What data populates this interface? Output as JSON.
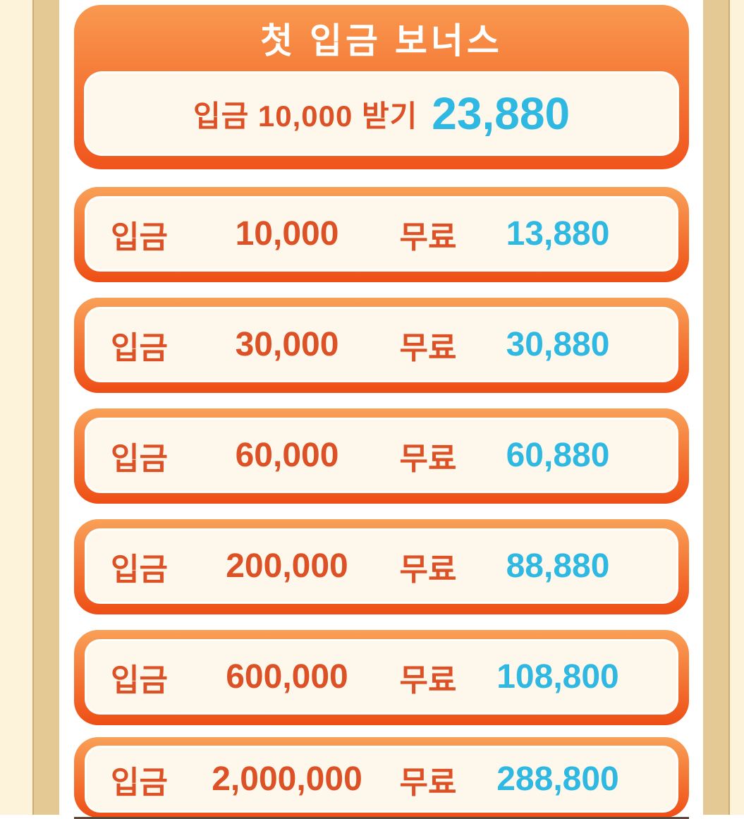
{
  "colors": {
    "page_margin_cream": "#FCF3DA",
    "page_margin_tan": "#E4C994",
    "card_gradient_top": "#F9A057",
    "card_gradient_bottom": "#EE4E15",
    "card_inner_bg": "#FDF8EB",
    "deposit_text": "#DC5226",
    "bonus_text": "#2FB9E2",
    "title_text": "#FFFFFF"
  },
  "header_card": {
    "title": "첫 입금 보너스",
    "deposit_line": "입금 10,000  받기",
    "bonus_amount": "23,880"
  },
  "bonus_tiers": [
    {
      "deposit_label": "입금",
      "deposit": "10,000",
      "free_label": "무료",
      "bonus": "13,880"
    },
    {
      "deposit_label": "입금",
      "deposit": "30,000",
      "free_label": "무료",
      "bonus": "30,880"
    },
    {
      "deposit_label": "입금",
      "deposit": "60,000",
      "free_label": "무료",
      "bonus": "60,880"
    },
    {
      "deposit_label": "입금",
      "deposit": "200,000",
      "free_label": "무료",
      "bonus": "88,880"
    },
    {
      "deposit_label": "입금",
      "deposit": "600,000",
      "free_label": "무료",
      "bonus": "108,800"
    },
    {
      "deposit_label": "입금",
      "deposit": "2,000,000",
      "free_label": "무료",
      "bonus": "288,800"
    }
  ]
}
